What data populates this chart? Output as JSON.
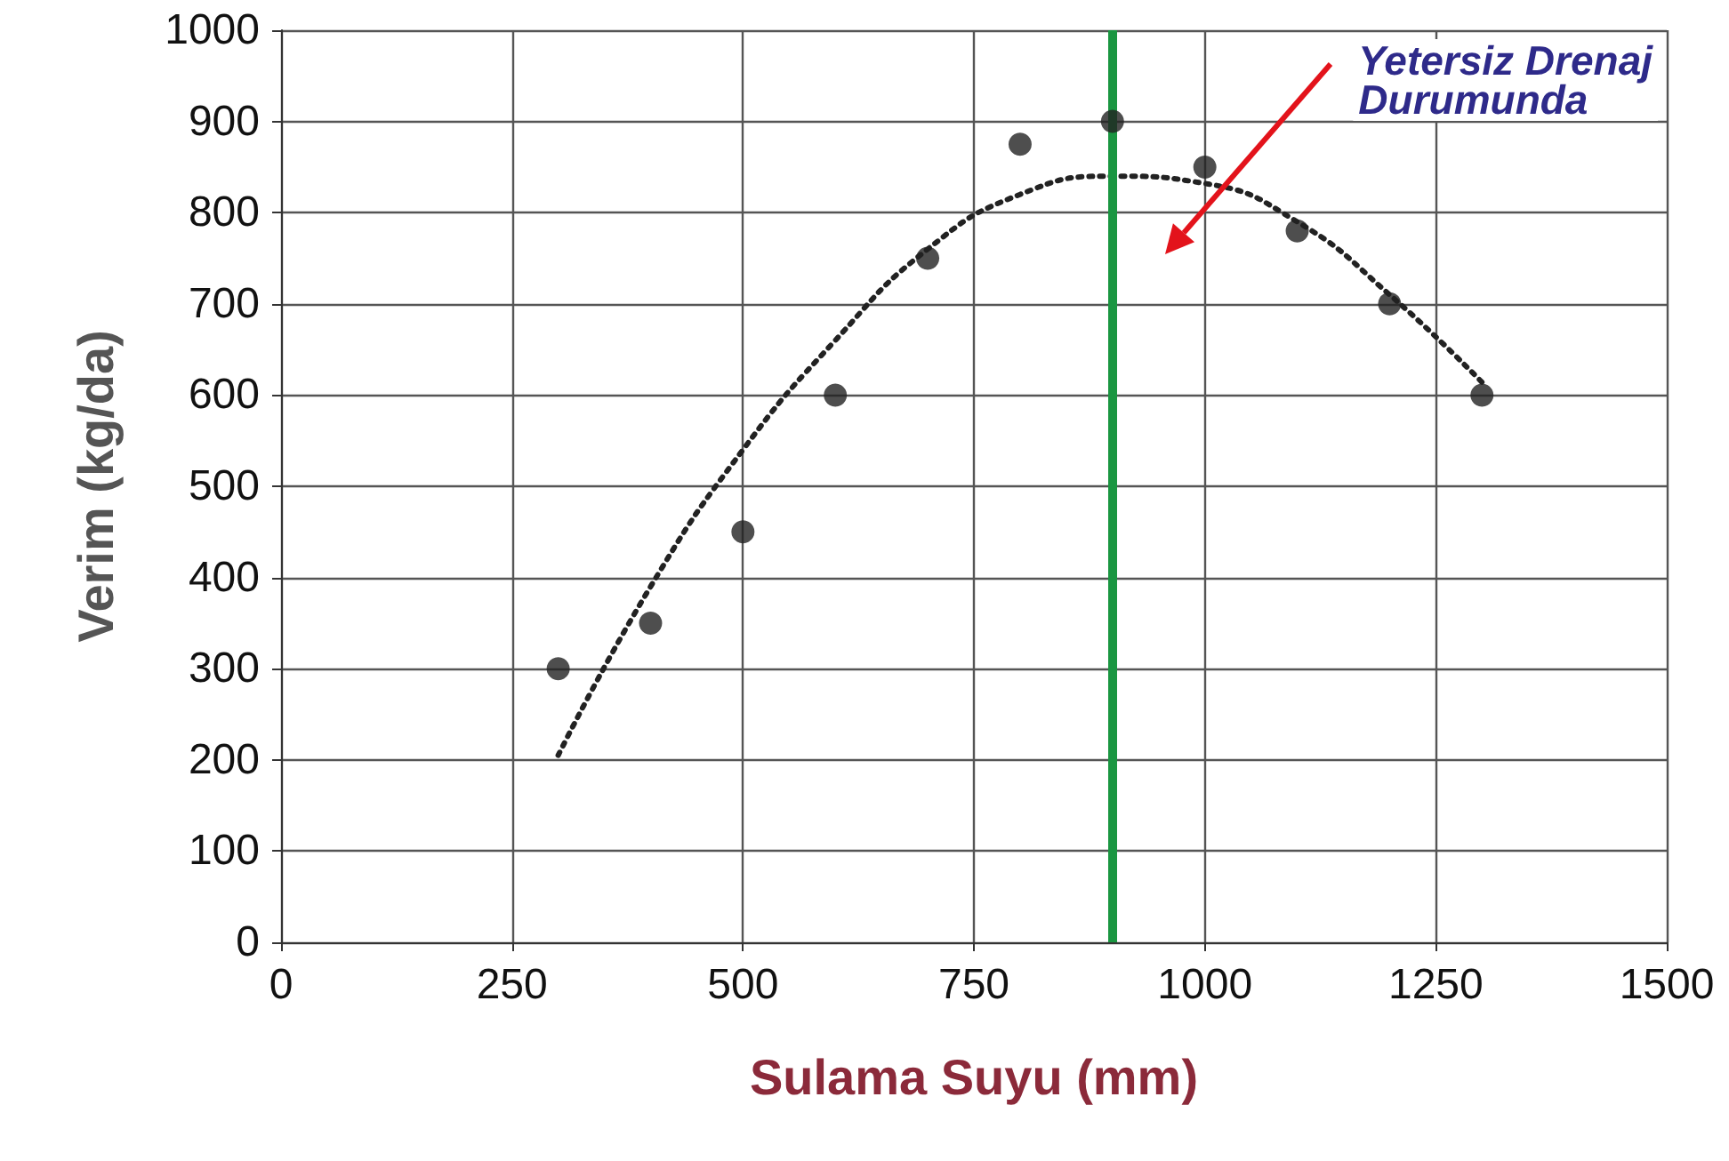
{
  "chart_data": {
    "type": "scatter",
    "xlabel": "Sulama Suyu (mm)",
    "ylabel": "Verim (kg/da)",
    "xlim": [
      0,
      1500
    ],
    "xticks": [
      0,
      250,
      500,
      750,
      1000,
      1250,
      1500
    ],
    "ylim": [
      0,
      1000
    ],
    "yticks": [
      0,
      100,
      200,
      300,
      400,
      500,
      600,
      700,
      800,
      900,
      1000
    ],
    "grid": true,
    "marker": "circle",
    "series": [
      {
        "color": "#222222",
        "x": [
          300,
          400,
          500,
          600,
          700,
          800,
          900,
          1000,
          1100,
          1200,
          1300
        ],
        "values": [
          300,
          350,
          450,
          600,
          750,
          875,
          900,
          850,
          780,
          700,
          600
        ]
      },
      {
        "type": "line",
        "color": "#222222",
        "line_style": "dotted",
        "marker": "none",
        "x": [
          300,
          400,
          500,
          600,
          700,
          800,
          900,
          1000,
          1100,
          1200,
          1300
        ],
        "values": [
          205,
          390,
          540,
          660,
          760,
          820,
          840,
          832,
          790,
          710,
          614
        ]
      }
    ],
    "ref_lines": [
      {
        "axis": "x",
        "value": 900,
        "color": "#1a9641"
      }
    ],
    "annotations": [
      "Yetersiz Drenaj\nDurumunda"
    ]
  }
}
